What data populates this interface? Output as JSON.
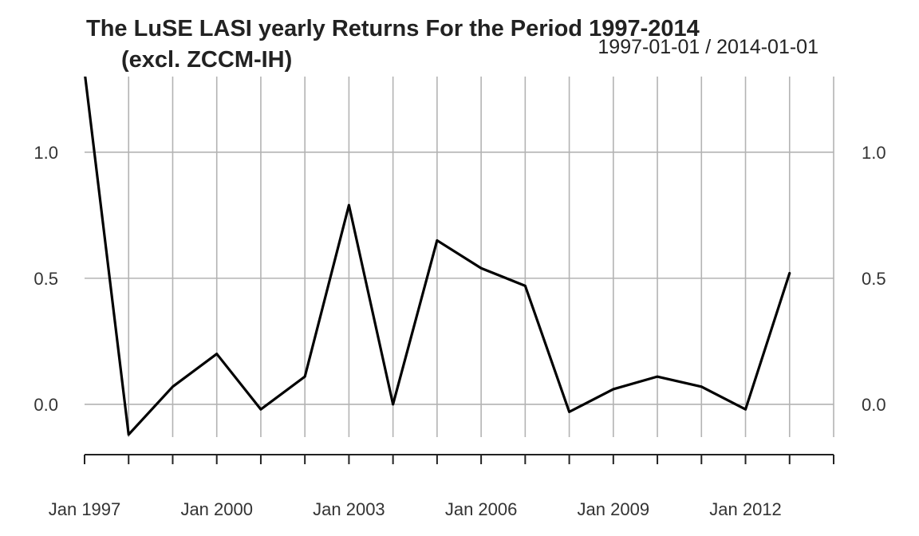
{
  "chart_data": {
    "type": "line",
    "title_line1": "The LuSE LASI yearly Returns For the Period 1997-2014",
    "title_line2": "(excl. ZCCM-IH)",
    "date_range": "1997-01-01 / 2014-01-01",
    "x": [
      "1997-01-01",
      "1998-01-01",
      "1999-01-01",
      "2000-01-01",
      "2001-01-01",
      "2002-01-01",
      "2003-01-01",
      "2004-01-01",
      "2005-01-01",
      "2006-01-01",
      "2007-01-01",
      "2008-01-01",
      "2009-01-01",
      "2010-01-01",
      "2011-01-01",
      "2012-01-01",
      "2013-01-01",
      "2014-01-01"
    ],
    "series": [
      {
        "values": [
          1.32,
          -0.12,
          0.07,
          0.2,
          -0.02,
          0.11,
          0.79,
          0.0,
          0.65,
          0.54,
          0.47,
          -0.03,
          0.06,
          0.11,
          0.07,
          -0.02,
          0.52,
          null
        ],
        "color": "#000000"
      }
    ],
    "y_ticks": [
      0.0,
      0.5,
      1.0
    ],
    "y_tick_labels": [
      "0.0",
      "0.5",
      "1.0"
    ],
    "ylim": [
      -0.13,
      1.3
    ],
    "x_tick_labels": [
      "Jan 1997",
      "Jan 2000",
      "Jan 2003",
      "Jan 2006",
      "Jan 2009",
      "Jan 2012"
    ],
    "x_tick_label_years": [
      1997,
      2000,
      2003,
      2006,
      2009,
      2012
    ],
    "grid": true,
    "y_axis_labels_both_sides": true
  }
}
